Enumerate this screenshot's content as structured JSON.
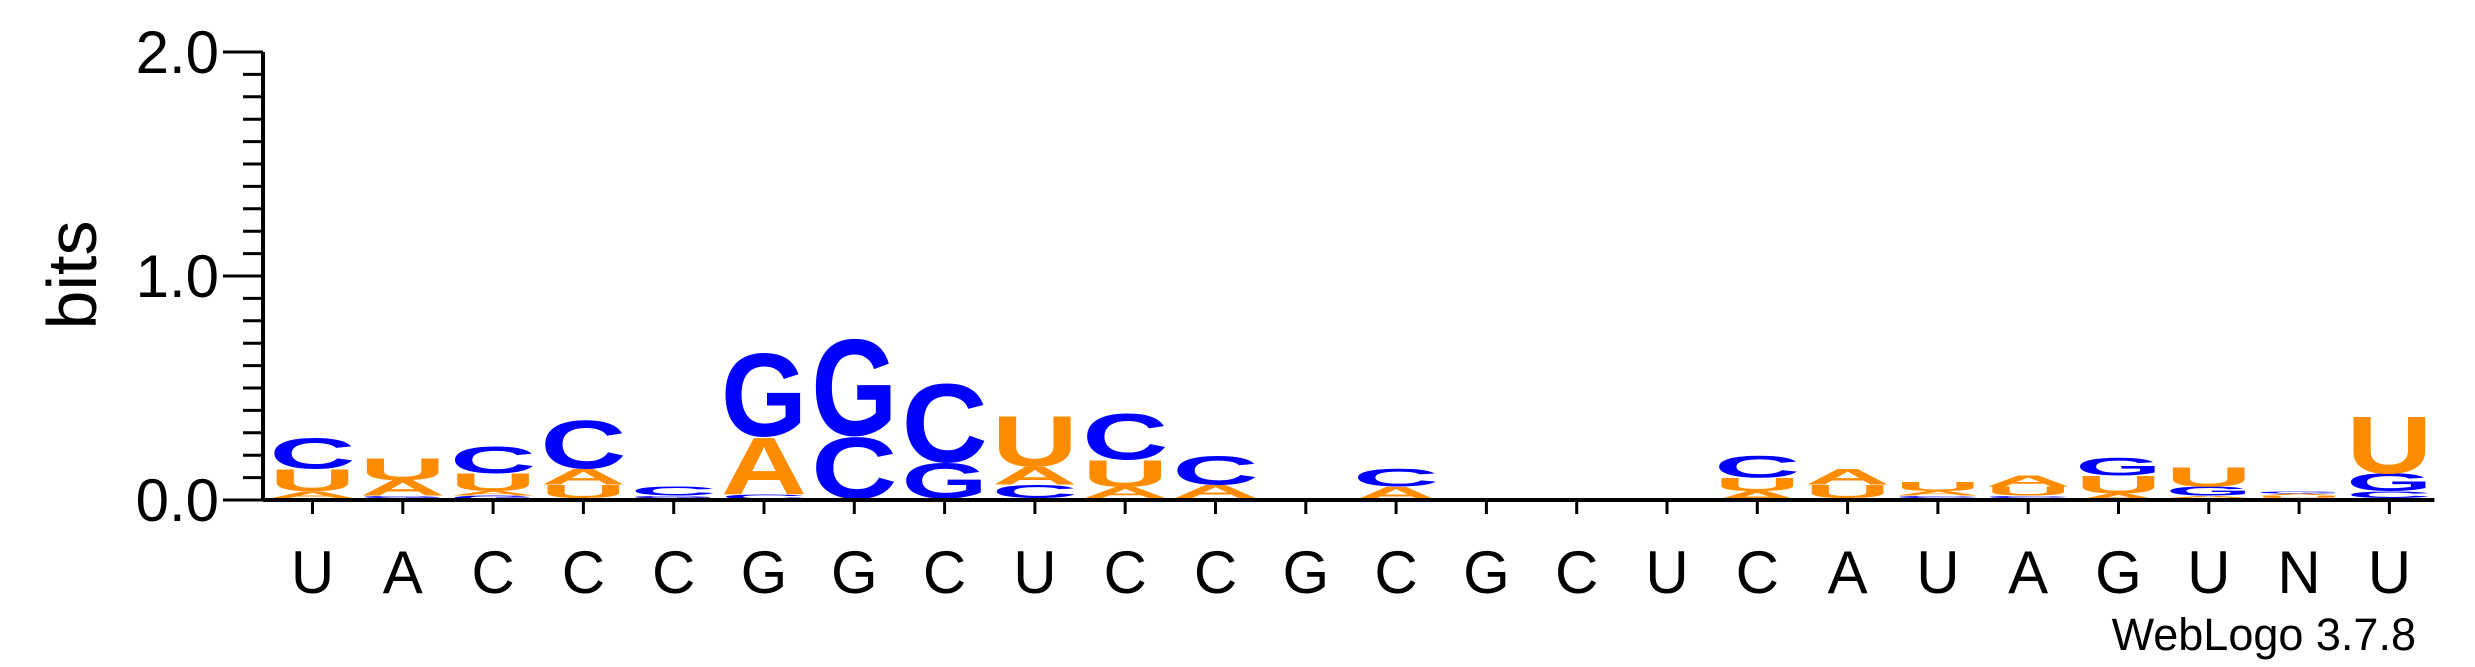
{
  "chart_data": {
    "type": "sequence-logo",
    "ylabel": "bits",
    "ylim": [
      0,
      2.0
    ],
    "yticks": [
      "0.0",
      "1.0",
      "2.0"
    ],
    "credit": "WebLogo 3.7.8",
    "colors": {
      "A": "#ff8c00",
      "U": "#ff8c00",
      "C": "#0000ff",
      "G": "#0000ff",
      "N": "#000000"
    },
    "positions": [
      {
        "label": "U",
        "stack": [
          [
            "G",
            0.01
          ],
          [
            "A",
            0.03
          ],
          [
            "U",
            0.1
          ],
          [
            "C",
            0.14
          ]
        ]
      },
      {
        "label": "A",
        "stack": [
          [
            "C",
            0.01
          ],
          [
            "G",
            0.01
          ],
          [
            "A",
            0.07
          ],
          [
            "U",
            0.1
          ]
        ]
      },
      {
        "label": "C",
        "stack": [
          [
            "G",
            0.02
          ],
          [
            "A",
            0.02
          ],
          [
            "U",
            0.08
          ],
          [
            "C",
            0.12
          ]
        ]
      },
      {
        "label": "C",
        "stack": [
          [
            "G",
            0.01
          ],
          [
            "U",
            0.06
          ],
          [
            "A",
            0.07
          ],
          [
            "C",
            0.22
          ]
        ]
      },
      {
        "label": "C",
        "stack": [
          [
            "A",
            0.005
          ],
          [
            "U",
            0.005
          ],
          [
            "G",
            0.01
          ],
          [
            "C",
            0.04
          ]
        ]
      },
      {
        "label": "G",
        "stack": [
          [
            "U",
            0.005
          ],
          [
            "C",
            0.02
          ],
          [
            "A",
            0.26
          ],
          [
            "G",
            0.38
          ]
        ]
      },
      {
        "label": "G",
        "stack": [
          [
            "U",
            0.005
          ],
          [
            "A",
            0.005
          ],
          [
            "C",
            0.28
          ],
          [
            "G",
            0.44
          ]
        ]
      },
      {
        "label": "C",
        "stack": [
          [
            "U",
            0.005
          ],
          [
            "A",
            0.005
          ],
          [
            "G",
            0.16
          ],
          [
            "C",
            0.36
          ]
        ]
      },
      {
        "label": "U",
        "stack": [
          [
            "G",
            0.01
          ],
          [
            "C",
            0.06
          ],
          [
            "A",
            0.08
          ],
          [
            "U",
            0.23
          ]
        ]
      },
      {
        "label": "C",
        "stack": [
          [
            "G",
            0.01
          ],
          [
            "A",
            0.05
          ],
          [
            "U",
            0.12
          ],
          [
            "C",
            0.21
          ]
        ]
      },
      {
        "label": "C",
        "stack": [
          [
            "U",
            0.01
          ],
          [
            "A",
            0.06
          ],
          [
            "C",
            0.13
          ]
        ]
      },
      {
        "label": "G",
        "stack": []
      },
      {
        "label": "C",
        "stack": [
          [
            "A",
            0.06
          ],
          [
            "C",
            0.08
          ]
        ]
      },
      {
        "label": "G",
        "stack": []
      },
      {
        "label": "C",
        "stack": []
      },
      {
        "label": "U",
        "stack": []
      },
      {
        "label": "C",
        "stack": [
          [
            "A",
            0.04
          ],
          [
            "U",
            0.06
          ],
          [
            "C",
            0.1
          ]
        ]
      },
      {
        "label": "A",
        "stack": [
          [
            "C",
            0.01
          ],
          [
            "U",
            0.06
          ],
          [
            "A",
            0.07
          ]
        ]
      },
      {
        "label": "U",
        "stack": [
          [
            "G",
            0.01
          ],
          [
            "C",
            0.01
          ],
          [
            "A",
            0.02
          ],
          [
            "U",
            0.04
          ]
        ]
      },
      {
        "label": "A",
        "stack": [
          [
            "G",
            0.01
          ],
          [
            "C",
            0.01
          ],
          [
            "U",
            0.04
          ],
          [
            "A",
            0.05
          ]
        ]
      },
      {
        "label": "G",
        "stack": [
          [
            "A",
            0.03
          ],
          [
            "U",
            0.08
          ],
          [
            "G",
            0.08
          ]
        ]
      },
      {
        "label": "U",
        "stack": [
          [
            "C",
            0.01
          ],
          [
            "A",
            0.01
          ],
          [
            "G",
            0.04
          ],
          [
            "U",
            0.09
          ]
        ]
      },
      {
        "label": "N",
        "stack": [
          [
            "C",
            0.01
          ],
          [
            "U",
            0.01
          ],
          [
            "A",
            0.01
          ],
          [
            "G",
            0.01
          ]
        ]
      },
      {
        "label": "U",
        "stack": [
          [
            "A",
            0.01
          ],
          [
            "C",
            0.03
          ],
          [
            "G",
            0.08
          ],
          [
            "U",
            0.26
          ]
        ]
      }
    ]
  }
}
